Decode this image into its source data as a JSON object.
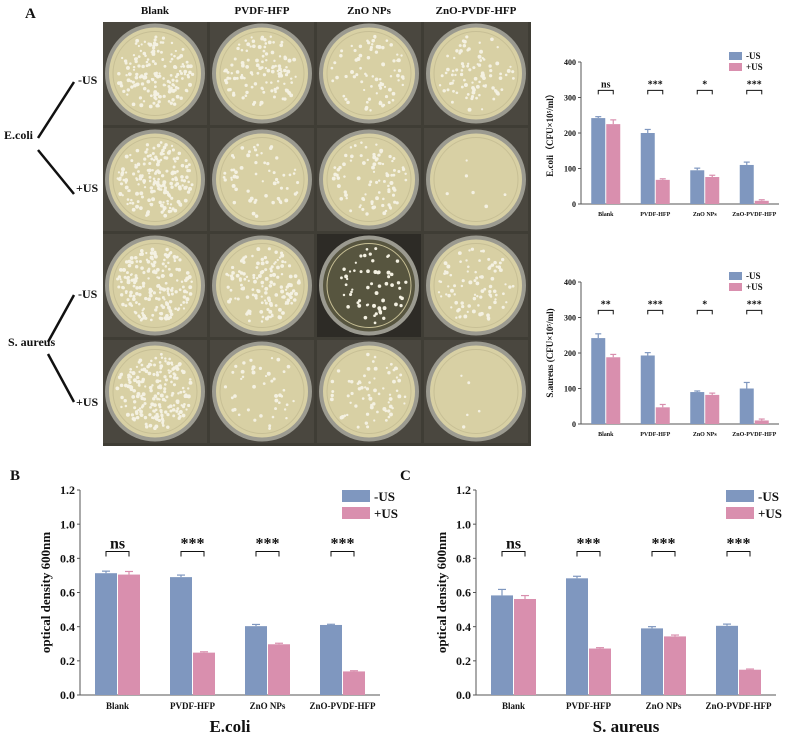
{
  "panels": {
    "A": "A",
    "B": "B",
    "C": "C"
  },
  "plate_grid": {
    "columns": [
      "Blank",
      "PVDF-HFP",
      "ZnO NPs",
      "ZnO-PVDF-HFP"
    ],
    "conditions": [
      "-US",
      "+US",
      "-US",
      "+US"
    ],
    "groups": [
      "E.coli",
      "S. aureus"
    ]
  },
  "colors": {
    "minus_us": "#7f97bf",
    "plus_us": "#d98fae",
    "plate": "#d8d0a4",
    "colony": "#f4f1e2"
  },
  "chart_data": [
    {
      "id": "ecoli_cfu",
      "type": "bar",
      "categories": [
        "Blank",
        "PVDF-HFP",
        "ZnO NPs",
        "ZnO-PVDF-HFP"
      ],
      "series": [
        {
          "name": "-US",
          "values": [
            242,
            200,
            95,
            110
          ],
          "errors": [
            4,
            10,
            6,
            8
          ]
        },
        {
          "name": "+US",
          "values": [
            225,
            68,
            76,
            9
          ],
          "errors": [
            12,
            3,
            5,
            3
          ]
        }
      ],
      "significance": [
        "ns",
        "***",
        "*",
        "***"
      ],
      "ylabel": "E.coli（CFU×10⁵/ml）",
      "ylim": [
        0,
        400
      ],
      "yticks": [
        "0",
        "100",
        "200",
        "300",
        "400"
      ],
      "legend": "top-right"
    },
    {
      "id": "saureus_cfu",
      "type": "bar",
      "categories": [
        "Blank",
        "PVDF-HFP",
        "ZnO NPs",
        "ZnO-PVDF-HFP"
      ],
      "series": [
        {
          "name": "-US",
          "values": [
            242,
            193,
            90,
            100
          ],
          "errors": [
            12,
            8,
            3,
            17
          ]
        },
        {
          "name": "+US",
          "values": [
            188,
            47,
            82,
            10
          ],
          "errors": [
            8,
            8,
            5,
            4
          ]
        }
      ],
      "significance": [
        "**",
        "***",
        "*",
        "***"
      ],
      "ylabel": "S.aureus (CFU×10⁵/ml)",
      "ylim": [
        0,
        400
      ],
      "yticks": [
        "0",
        "100",
        "200",
        "300",
        "400"
      ],
      "legend": "top-right"
    },
    {
      "id": "ecoli_od",
      "type": "bar",
      "categories": [
        "Blank",
        "PVDF-HFP",
        "ZnO NPs",
        "ZnO-PVDF-HFP"
      ],
      "series": [
        {
          "name": "-US",
          "values": [
            0.713,
            0.69,
            0.403,
            0.41
          ],
          "errors": [
            0.012,
            0.012,
            0.01,
            0.004
          ]
        },
        {
          "name": "+US",
          "values": [
            0.705,
            0.248,
            0.297,
            0.138
          ],
          "errors": [
            0.018,
            0.005,
            0.006,
            0.004
          ]
        }
      ],
      "significance": [
        "ns",
        "***",
        "***",
        "***"
      ],
      "xlabel": "E.coli",
      "ylabel": "optical density 600nm",
      "ylim": [
        0,
        1.2
      ],
      "yticks": [
        "0.0",
        "0.2",
        "0.4",
        "0.6",
        "0.8",
        "1.0",
        "1.2"
      ],
      "legend": "top-right"
    },
    {
      "id": "saureus_od",
      "type": "bar",
      "categories": [
        "Blank",
        "PVDF-HFP",
        "ZnO NPs",
        "ZnO-PVDF-HFP"
      ],
      "series": [
        {
          "name": "-US",
          "values": [
            0.583,
            0.683,
            0.39,
            0.405
          ],
          "errors": [
            0.035,
            0.012,
            0.01,
            0.01
          ]
        },
        {
          "name": "+US",
          "values": [
            0.562,
            0.272,
            0.343,
            0.148
          ],
          "errors": [
            0.02,
            0.005,
            0.008,
            0.004
          ]
        }
      ],
      "significance": [
        "ns",
        "***",
        "***",
        "***"
      ],
      "xlabel": "S. aureus",
      "ylabel": "optical density 600nm",
      "ylim": [
        0,
        1.2
      ],
      "yticks": [
        "0.0",
        "0.2",
        "0.4",
        "0.6",
        "0.8",
        "1.0",
        "1.2"
      ],
      "legend": "top-right"
    }
  ]
}
